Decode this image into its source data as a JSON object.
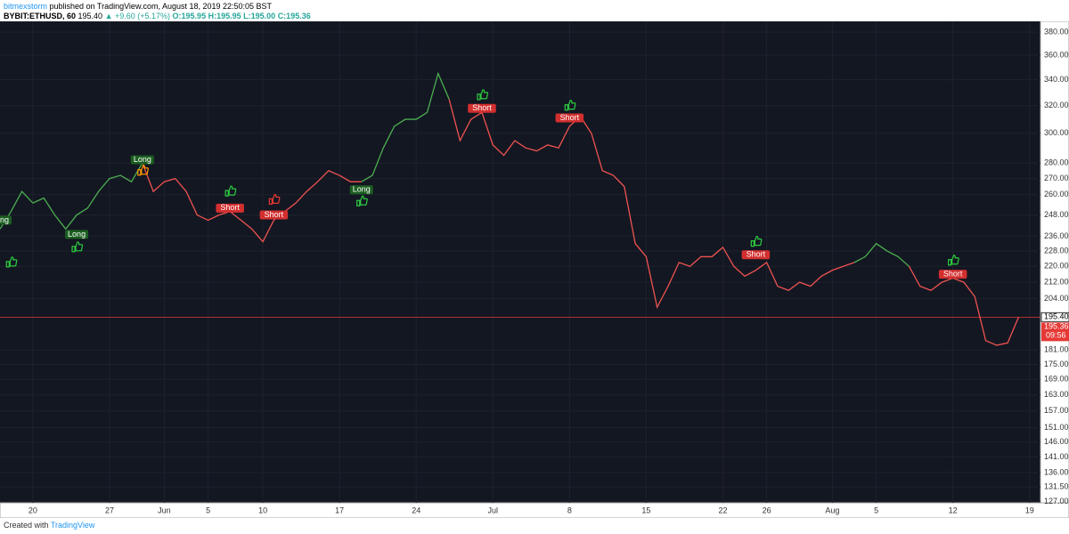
{
  "header": {
    "publisher": "bitmexstorm",
    "published": "published on TradingView.com, August 18, 2019 22:50:05 BST",
    "symbol": "BYBIT:ETHUSD, 60",
    "last": "195.40",
    "change": "▲ +9.60 (+5.17%)",
    "ohlc": [
      "O:195.95",
      "H:195.95",
      "L:195.00",
      "C:195.36"
    ]
  },
  "footer": {
    "text": "Created with",
    "brand": "TradingView"
  },
  "chart_data": {
    "type": "line",
    "log_scale": true,
    "grid": true,
    "background": "#131722",
    "x": [
      "May 17",
      "May 18",
      "May 19",
      "May 20",
      "May 21",
      "May 22",
      "May 23",
      "May 24",
      "May 25",
      "May 26",
      "May 27",
      "May 28",
      "May 29",
      "May 30",
      "May 31",
      "Jun 1",
      "Jun 2",
      "Jun 3",
      "Jun 4",
      "Jun 5",
      "Jun 6",
      "Jun 7",
      "Jun 8",
      "Jun 9",
      "Jun 10",
      "Jun 11",
      "Jun 12",
      "Jun 13",
      "Jun 14",
      "Jun 15",
      "Jun 16",
      "Jun 17",
      "Jun 18",
      "Jun 19",
      "Jun 20",
      "Jun 21",
      "Jun 22",
      "Jun 23",
      "Jun 24",
      "Jun 25",
      "Jun 26",
      "Jun 27",
      "Jun 28",
      "Jun 29",
      "Jun 30",
      "Jul 1",
      "Jul 2",
      "Jul 3",
      "Jul 4",
      "Jul 5",
      "Jul 6",
      "Jul 7",
      "Jul 8",
      "Jul 9",
      "Jul 10",
      "Jul 11",
      "Jul 12",
      "Jul 13",
      "Jul 14",
      "Jul 15",
      "Jul 16",
      "Jul 17",
      "Jul 18",
      "Jul 19",
      "Jul 20",
      "Jul 21",
      "Jul 22",
      "Jul 23",
      "Jul 24",
      "Jul 25",
      "Jul 26",
      "Jul 27",
      "Jul 28",
      "Jul 29",
      "Jul 30",
      "Jul 31",
      "Aug 1",
      "Aug 2",
      "Aug 3",
      "Aug 4",
      "Aug 5",
      "Aug 6",
      "Aug 7",
      "Aug 8",
      "Aug 9",
      "Aug 10",
      "Aug 11",
      "Aug 12",
      "Aug 13",
      "Aug 14",
      "Aug 15",
      "Aug 16",
      "Aug 17",
      "Aug 18"
    ],
    "series": [
      {
        "color": "#4caf50",
        "values": [
          240,
          250,
          262,
          255,
          258,
          248,
          240,
          248,
          252,
          262,
          270,
          272,
          268,
          280,
          null,
          null,
          null,
          null,
          null,
          null,
          null,
          null,
          null,
          null,
          null,
          null,
          null,
          null,
          null,
          null,
          null,
          null,
          null,
          268,
          272,
          290,
          305,
          310,
          310,
          315,
          345,
          325,
          null,
          null,
          null,
          null,
          null,
          null,
          null,
          null,
          null,
          null,
          null,
          null,
          null,
          null,
          null,
          null,
          null,
          null,
          null,
          null,
          null,
          null,
          null,
          null,
          null,
          null,
          null,
          null,
          null,
          null,
          null,
          null,
          null,
          null,
          null,
          null,
          222,
          225,
          232,
          228,
          225,
          220,
          null,
          null,
          null,
          null,
          null,
          null,
          null,
          null,
          null,
          null
        ]
      },
      {
        "color": "#ef5350",
        "values": [
          null,
          null,
          null,
          null,
          null,
          null,
          null,
          null,
          null,
          null,
          null,
          null,
          null,
          280,
          262,
          268,
          270,
          262,
          248,
          245,
          248,
          250,
          245,
          240,
          233,
          245,
          250,
          255,
          262,
          268,
          275,
          272,
          268,
          268,
          null,
          null,
          null,
          null,
          null,
          null,
          null,
          325,
          295,
          310,
          315,
          292,
          285,
          295,
          290,
          288,
          292,
          290,
          305,
          312,
          300,
          275,
          272,
          265,
          232,
          225,
          200,
          210,
          222,
          220,
          225,
          225,
          230,
          220,
          215,
          218,
          222,
          210,
          208,
          212,
          210,
          215,
          218,
          220,
          222,
          null,
          null,
          null,
          null,
          220,
          210,
          208,
          212,
          214,
          212,
          205,
          185,
          183,
          184,
          195.4
        ]
      }
    ],
    "xlim": [
      "May 17",
      "Aug 20"
    ],
    "xticks": [
      {
        "value": "May 20",
        "label": "20"
      },
      {
        "value": "May 27",
        "label": "27"
      },
      {
        "value": "Jun 1",
        "label": "Jun"
      },
      {
        "value": "Jun 5",
        "label": "5"
      },
      {
        "value": "Jun 10",
        "label": "10"
      },
      {
        "value": "Jun 17",
        "label": "17"
      },
      {
        "value": "Jun 24",
        "label": "24"
      },
      {
        "value": "Jul 1",
        "label": "Jul"
      },
      {
        "value": "Jul 8",
        "label": "8"
      },
      {
        "value": "Jul 15",
        "label": "15"
      },
      {
        "value": "Jul 22",
        "label": "22"
      },
      {
        "value": "Jul 26",
        "label": "26"
      },
      {
        "value": "Aug 1",
        "label": "Aug"
      },
      {
        "value": "Aug 5",
        "label": "5"
      },
      {
        "value": "Aug 12",
        "label": "12"
      },
      {
        "value": "Aug 19",
        "label": "19"
      }
    ],
    "ylim": [
      126.7,
      389.6
    ],
    "yticks": [
      {
        "value": 380,
        "label": "380.00"
      },
      {
        "value": 360,
        "label": "360.00"
      },
      {
        "value": 340,
        "label": "340.00"
      },
      {
        "value": 320,
        "label": "320.00"
      },
      {
        "value": 300,
        "label": "300.00"
      },
      {
        "value": 280,
        "label": "280.00"
      },
      {
        "value": 270,
        "label": "270.00"
      },
      {
        "value": 260,
        "label": "260.00"
      },
      {
        "value": 248,
        "label": "248.00"
      },
      {
        "value": 236,
        "label": "236.00"
      },
      {
        "value": 228,
        "label": "228.00"
      },
      {
        "value": 220,
        "label": "220.00"
      },
      {
        "value": 212,
        "label": "212.00"
      },
      {
        "value": 204,
        "label": "204.00"
      },
      {
        "value": 181,
        "label": "181.00"
      },
      {
        "value": 175,
        "label": "175.00"
      },
      {
        "value": 169,
        "label": "169.00"
      },
      {
        "value": 163,
        "label": "163.00"
      },
      {
        "value": 157,
        "label": "157.00"
      },
      {
        "value": 151,
        "label": "151.00"
      },
      {
        "value": 146,
        "label": "146.00"
      },
      {
        "value": 141,
        "label": "141.00"
      },
      {
        "value": 136,
        "label": "136.00"
      },
      {
        "value": 131.5,
        "label": "131.50"
      },
      {
        "value": 127,
        "label": "127.00"
      }
    ],
    "last_price": {
      "value": 195.4,
      "label": "195.40",
      "color": "#e53935"
    },
    "close_price": {
      "value": 195.36,
      "label": "195.36"
    },
    "countdown": "09:56",
    "annotations": [
      {
        "text": "Long",
        "x": "May 17",
        "y": 245,
        "color": "#1b5e20"
      },
      {
        "text": "Long",
        "x": "May 24",
        "y": 237,
        "color": "#1b5e20"
      },
      {
        "text": "Long",
        "x": "May 30",
        "y": 282,
        "color": "#1b5e20"
      },
      {
        "text": "Short",
        "x": "Jun 7",
        "y": 252,
        "color": "#d32f2f"
      },
      {
        "text": "Short",
        "x": "Jun 11",
        "y": 248,
        "color": "#d32f2f"
      },
      {
        "text": "Long",
        "x": "Jun 19",
        "y": 263,
        "color": "#1b5e20"
      },
      {
        "text": "Short",
        "x": "Jun 30",
        "y": 318,
        "color": "#d32f2f"
      },
      {
        "text": "Short",
        "x": "Jul 8",
        "y": 311,
        "color": "#d32f2f"
      },
      {
        "text": "Short",
        "x": "Jul 25",
        "y": 226,
        "color": "#d32f2f"
      },
      {
        "text": "Short",
        "x": "Aug 12",
        "y": 216,
        "color": "#d32f2f"
      }
    ],
    "signals": [
      {
        "x": "May 18",
        "y": 222,
        "color": "#2ecc40"
      },
      {
        "x": "May 24",
        "y": 230,
        "color": "#2ecc40"
      },
      {
        "x": "May 30",
        "y": 275,
        "color": "#ff9800"
      },
      {
        "x": "Jun 7",
        "y": 262,
        "color": "#2ecc40"
      },
      {
        "x": "Jun 11",
        "y": 257,
        "color": "#e53935"
      },
      {
        "x": "Jun 19",
        "y": 256,
        "color": "#2ecc40"
      },
      {
        "x": "Jun 30",
        "y": 328,
        "color": "#2ecc40"
      },
      {
        "x": "Jul 8",
        "y": 320,
        "color": "#2ecc40"
      },
      {
        "x": "Jul 25",
        "y": 233,
        "color": "#2ecc40"
      },
      {
        "x": "Aug 12",
        "y": 223,
        "color": "#2ecc40"
      }
    ]
  }
}
